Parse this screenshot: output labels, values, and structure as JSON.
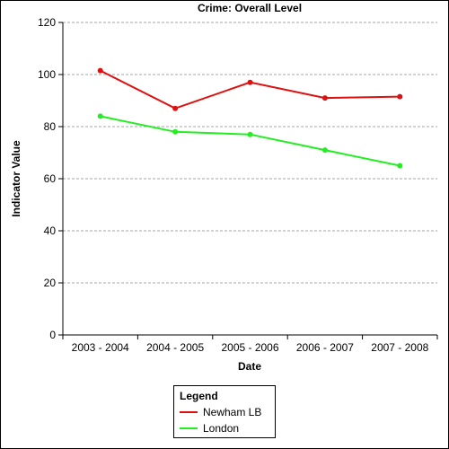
{
  "chart_data": {
    "type": "line",
    "title": "Crime: Overall Level",
    "xlabel": "Date",
    "ylabel": "Indicator Value",
    "categories": [
      "2003 - 2004",
      "2004 - 2005",
      "2005 - 2006",
      "2006 - 2007",
      "2007 - 2008"
    ],
    "ylim": [
      0,
      120
    ],
    "yticks": [
      0,
      20,
      40,
      60,
      80,
      100,
      120
    ],
    "grid": true,
    "series": [
      {
        "name": "Newham LB",
        "color": "#dd1111",
        "values": [
          101.5,
          87,
          97,
          91,
          91.5
        ]
      },
      {
        "name": "London",
        "color": "#22ee22",
        "values": [
          84,
          78,
          77,
          71,
          65
        ]
      }
    ],
    "legend": {
      "title": "Legend",
      "placement": "bottom-center"
    }
  }
}
